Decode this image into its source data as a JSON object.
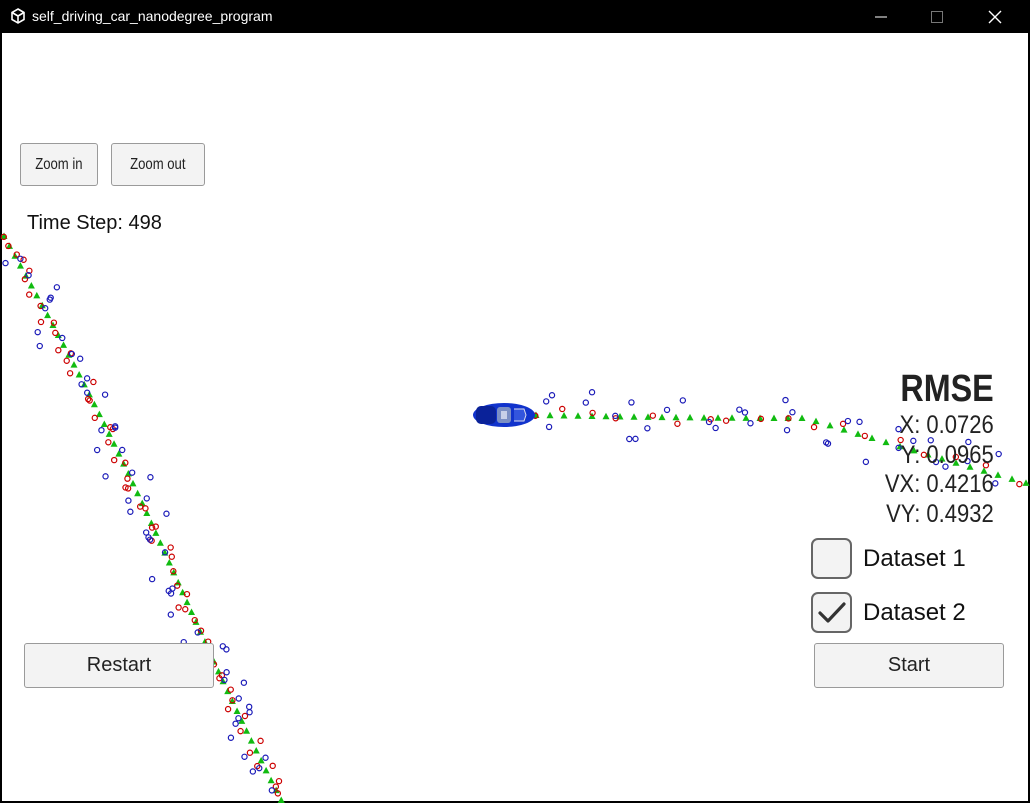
{
  "window": {
    "title": "self_driving_car_nanodegree_program"
  },
  "toolbar": {
    "zoom_in_label": "Zoom in",
    "zoom_out_label": "Zoom out"
  },
  "status": {
    "time_step_text": "Time Step: 498"
  },
  "rmse": {
    "title": "RMSE",
    "x": "X: 0.0726",
    "y": "Y: 0.0965",
    "vx": "VX: 0.4216",
    "vy": "VY: 0.4932"
  },
  "datasets": [
    {
      "label": "Dataset 1",
      "checked": false
    },
    {
      "label": "Dataset 2",
      "checked": true
    }
  ],
  "controls": {
    "restart_label": "Restart",
    "start_label": "Start"
  },
  "colors": {
    "lidar_marker": "#cc0000",
    "radar_marker": "#1a1ab8",
    "estimate_marker": "#11bb11",
    "car": "#1133cc"
  }
}
